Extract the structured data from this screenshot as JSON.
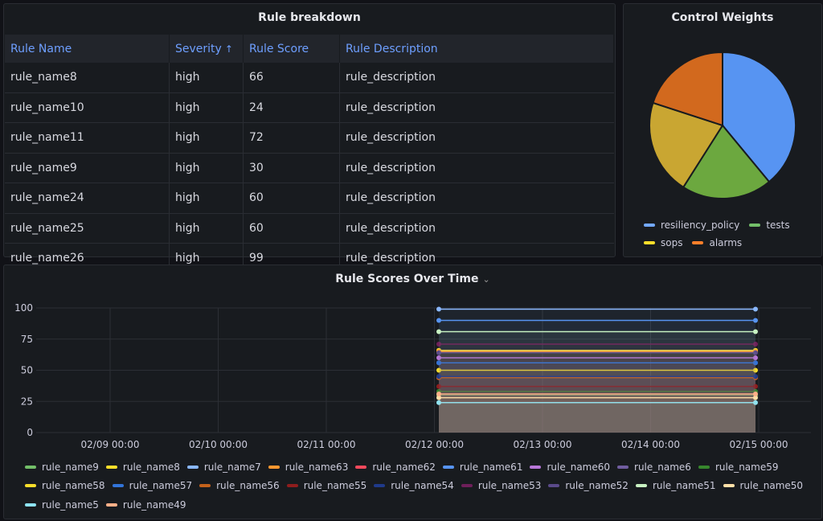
{
  "rules_panel": {
    "title": "Rule breakdown",
    "headers": [
      "Rule Name",
      "Severity",
      "Rule Score",
      "Rule Description"
    ],
    "sort_indicator": "↑",
    "rows": [
      [
        "rule_name8",
        "high",
        "66",
        "rule_description"
      ],
      [
        "rule_name10",
        "high",
        "24",
        "rule_description"
      ],
      [
        "rule_name11",
        "high",
        "72",
        "rule_description"
      ],
      [
        "rule_name9",
        "high",
        "30",
        "rule_description"
      ],
      [
        "rule_name24",
        "high",
        "60",
        "rule_description"
      ],
      [
        "rule_name25",
        "high",
        "60",
        "rule_description"
      ],
      [
        "rule_name26",
        "high",
        "99",
        "rule_description"
      ]
    ]
  },
  "control_panel": {
    "title": "Control Weights",
    "chart_data": {
      "type": "pie",
      "slices": [
        {
          "name": "resiliency_policy",
          "value": 39,
          "color": "#5794f2"
        },
        {
          "name": "tests",
          "value": 20,
          "color": "#6ca83f"
        },
        {
          "name": "sops",
          "value": 21,
          "color": "#c9a632"
        },
        {
          "name": "alarms",
          "value": 20,
          "color": "#d2691e"
        }
      ],
      "legend_colors": {
        "resiliency_policy": "#73a9ff",
        "tests": "#73bf69",
        "sops": "#fade2a",
        "alarms": "#ff7f2a"
      }
    }
  },
  "timeseries_panel": {
    "title": "Rule Scores Over Time",
    "title_chevron": "⌄",
    "chart_data": {
      "type": "line",
      "ylim": [
        0,
        100
      ],
      "yticks": [
        "0",
        "25",
        "50",
        "75",
        "100"
      ],
      "xticks": [
        "02/09 00:00",
        "02/10 00:00",
        "02/11 00:00",
        "02/12 00:00",
        "02/13 00:00",
        "02/14 00:00",
        "02/15 00:00"
      ],
      "x": [
        "02/12 00:00",
        "02/15 00:00"
      ],
      "series": [
        {
          "name": "rule_name9",
          "color": "#73bf69",
          "values": [
            30,
            30
          ]
        },
        {
          "name": "rule_name8",
          "color": "#fade2a",
          "values": [
            66,
            66
          ]
        },
        {
          "name": "rule_name7",
          "color": "#8ab8ff",
          "values": [
            99,
            99
          ]
        },
        {
          "name": "rule_name63",
          "color": "#ff9830",
          "values": [
            65,
            65
          ]
        },
        {
          "name": "rule_name62",
          "color": "#f2495c",
          "values": [
            44,
            44
          ]
        },
        {
          "name": "rule_name61",
          "color": "#5794f2",
          "values": [
            90,
            90
          ]
        },
        {
          "name": "rule_name60",
          "color": "#b877d9",
          "values": [
            60,
            60
          ]
        },
        {
          "name": "rule_name6",
          "color": "#705da0",
          "values": [
            56,
            56
          ]
        },
        {
          "name": "rule_name59",
          "color": "#37872d",
          "values": [
            33,
            33
          ]
        },
        {
          "name": "rule_name58",
          "color": "#fade2a",
          "values": [
            50,
            50
          ]
        },
        {
          "name": "rule_name57",
          "color": "#3274d9",
          "values": [
            56,
            56
          ]
        },
        {
          "name": "rule_name56",
          "color": "#c4621b",
          "values": [
            44,
            44
          ]
        },
        {
          "name": "rule_name55",
          "color": "#8f1d1d",
          "values": [
            37,
            37
          ]
        },
        {
          "name": "rule_name54",
          "color": "#1f3a8a",
          "values": [
            45,
            45
          ]
        },
        {
          "name": "rule_name53",
          "color": "#6e1f5a",
          "values": [
            71,
            71
          ]
        },
        {
          "name": "rule_name52",
          "color": "#5a4a8a",
          "values": [
            64,
            64
          ]
        },
        {
          "name": "rule_name51",
          "color": "#c8f2c2",
          "values": [
            81,
            81
          ]
        },
        {
          "name": "rule_name50",
          "color": "#ffe0a8",
          "values": [
            28,
            28
          ]
        },
        {
          "name": "rule_name5",
          "color": "#8ee4f2",
          "values": [
            24,
            24
          ]
        },
        {
          "name": "rule_name49",
          "color": "#ffb089",
          "values": [
            31,
            31
          ]
        }
      ]
    }
  }
}
